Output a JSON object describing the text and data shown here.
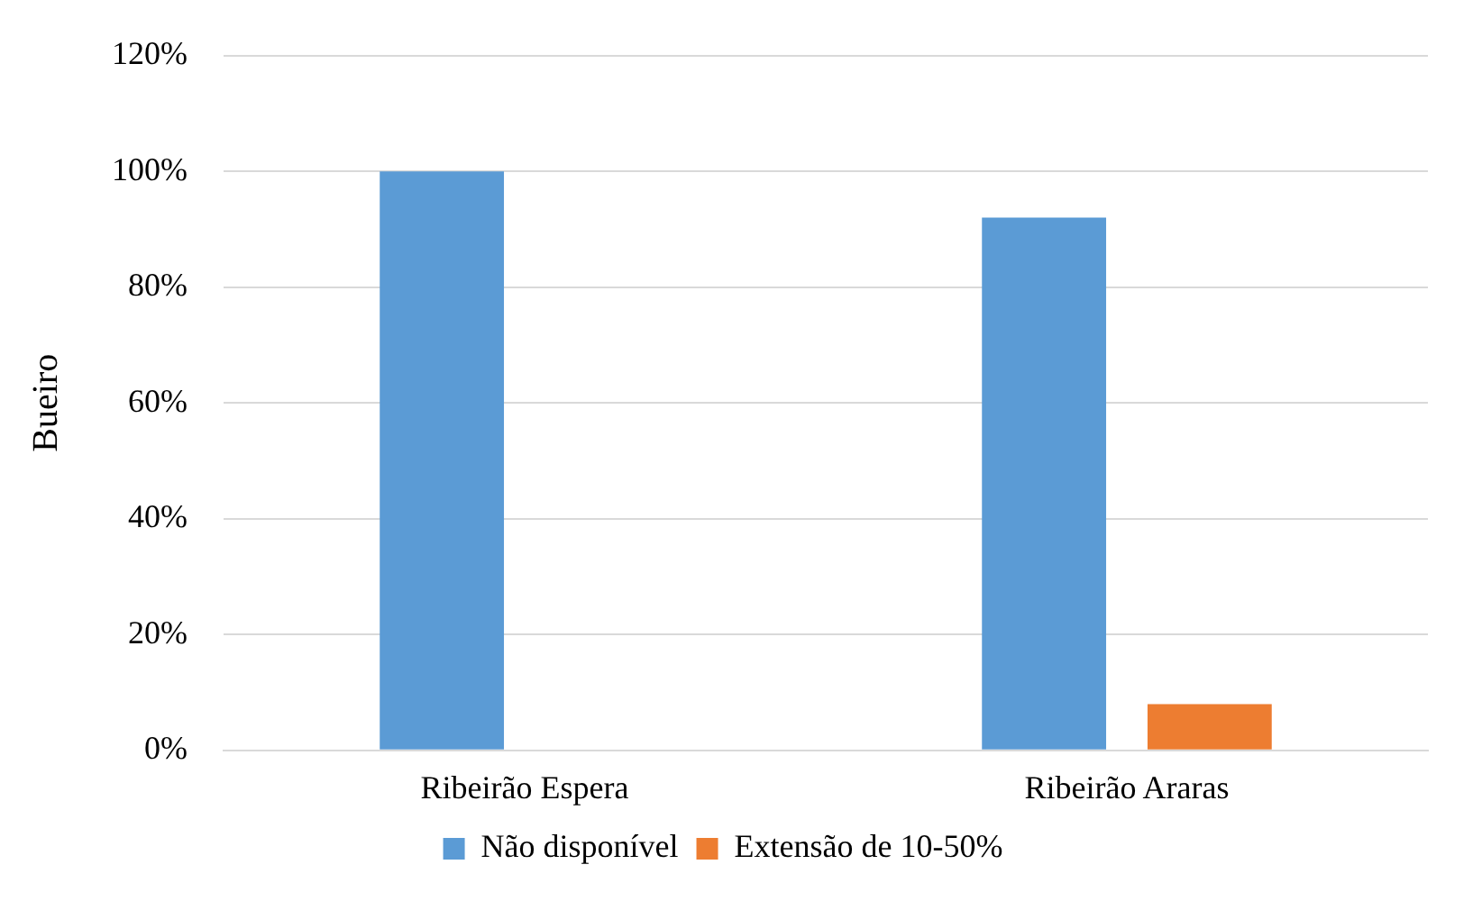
{
  "chart_data": {
    "type": "bar",
    "ylabel": "Bueiro",
    "categories": [
      "Ribeirão Espera",
      "Ribeirão Araras"
    ],
    "series": [
      {
        "name": "Não disponível",
        "color": "#5b9bd5",
        "values": [
          100,
          92
        ]
      },
      {
        "name": "Extensão de 10-50%",
        "color": "#ed7d31",
        "values": [
          0,
          8
        ]
      }
    ],
    "ylim": [
      0,
      120
    ],
    "yticks": [
      {
        "value": 0,
        "label": "0%"
      },
      {
        "value": 20,
        "label": "20%"
      },
      {
        "value": 40,
        "label": "40%"
      },
      {
        "value": 60,
        "label": "60%"
      },
      {
        "value": 80,
        "label": "80%"
      },
      {
        "value": 100,
        "label": "100%"
      },
      {
        "value": 120,
        "label": "120%"
      }
    ],
    "grid": "y",
    "legend": "bottom"
  }
}
